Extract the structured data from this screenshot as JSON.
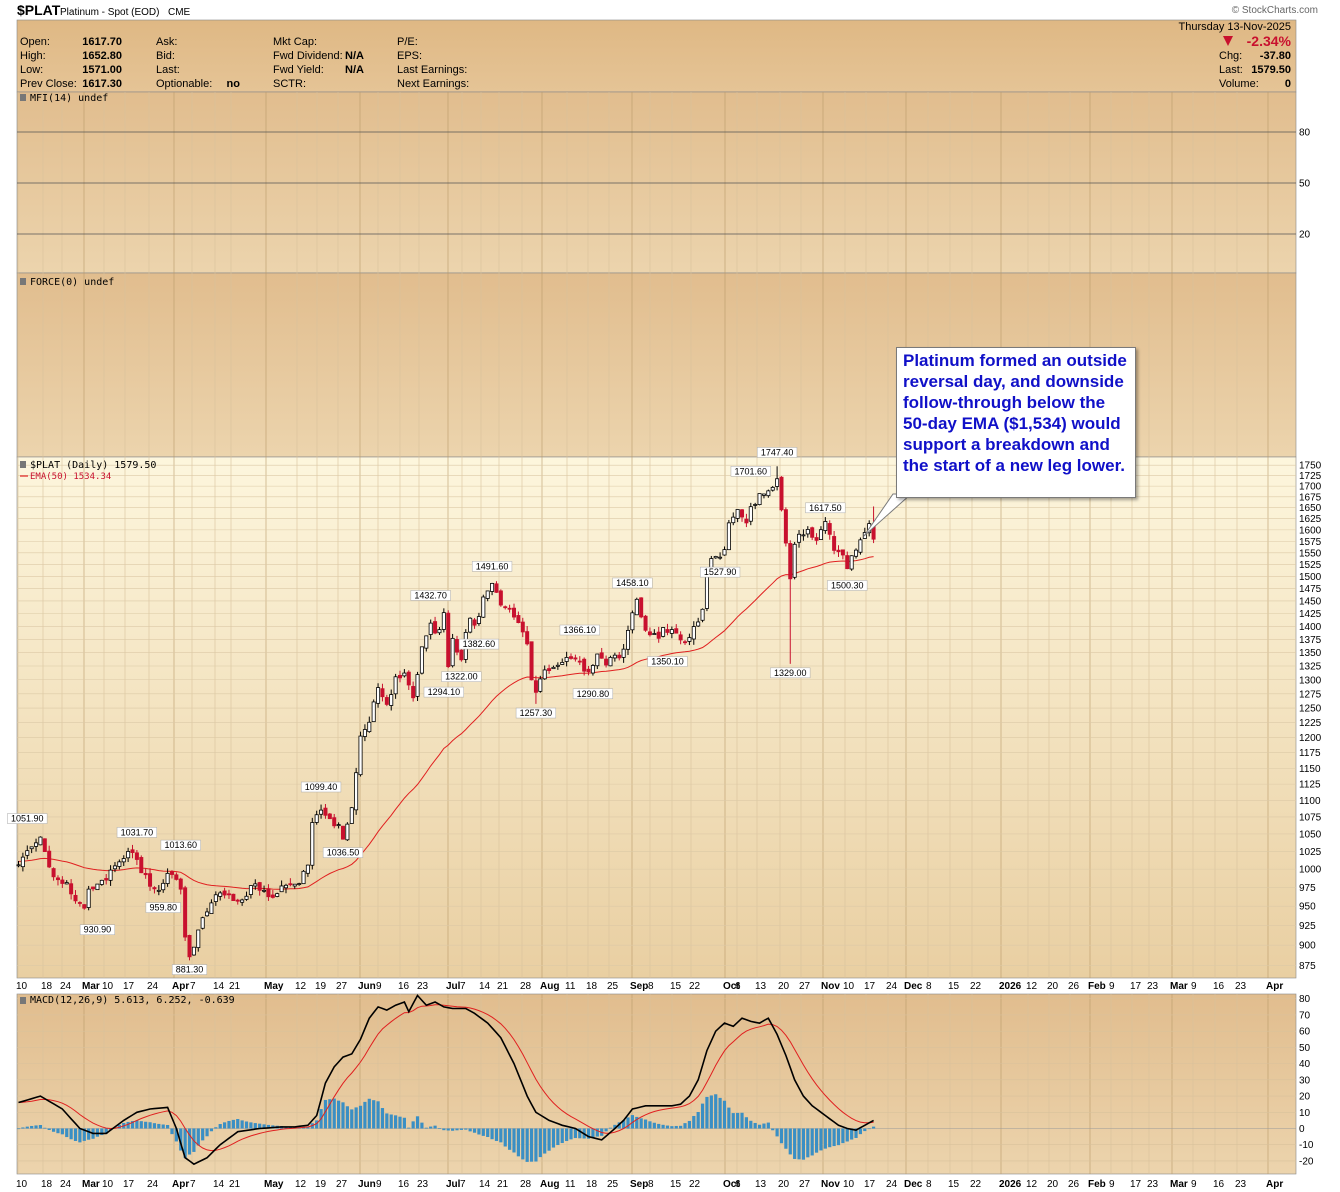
{
  "header": {
    "symbol": "$PLAT",
    "name": "Platinum - Spot (EOD)",
    "exchange": "CME",
    "date": "Thursday  13-Nov-2025",
    "source": "© StockCharts.com",
    "pct_change": "-2.34%",
    "fields": {
      "open_label": "Open:",
      "open": "1617.70",
      "high_label": "High:",
      "high": "1652.80",
      "low_label": "Low:",
      "low": "1571.00",
      "prev_label": "Prev Close:",
      "prev": "1617.30",
      "ask_label": "Ask:",
      "bid_label": "Bid:",
      "last_label": "Last:",
      "optionable_label": "Optionable:",
      "optionable": "no",
      "mktcap_label": "Mkt Cap:",
      "fwddiv_label": "Fwd Dividend:",
      "fwddiv": "N/A",
      "fwdyield_label": "Fwd Yield:",
      "fwdyield": "N/A",
      "sctr_label": "SCTR:",
      "pe_label": "P/E:",
      "eps_label": "EPS:",
      "lastearn_label": "Last Earnings:",
      "nextearn_label": "Next Earnings:",
      "chg_label": "Chg:",
      "chg": "-37.80",
      "lastprice_label": "Last:",
      "lastprice": "1579.50",
      "volume_label": "Volume:",
      "volume": "0"
    }
  },
  "panels": {
    "mfi_label": "MFI(14) undef",
    "force_label": "FORCE(0) undef",
    "price_label": "$PLAT (Daily) 1579.50",
    "ema_label": "EMA(50) 1534.34",
    "macd_label_main": "MACD(12,26,9) 5.613, 6.252, -0.639"
  },
  "colors": {
    "up": "#000000",
    "down": "#c8102e",
    "ema": "#e02020",
    "macd_line": "#000000",
    "signal_line": "#e02020",
    "histogram": "#3a8fc4",
    "annotation_text": "#1010c8"
  },
  "callout_text": "Platinum formed an outside reversal day, and downside follow-through below the 50-day EMA ($1,534) would support a breakdown and the start of a new leg lower.",
  "chart_data": {
    "type": "line",
    "title": "$PLAT (Daily) 1579.50",
    "ylim": [
      860,
      1770
    ],
    "y_scale": "log",
    "price_ticks": [
      875,
      900,
      925,
      950,
      975,
      1000,
      1025,
      1050,
      1075,
      1100,
      1125,
      1150,
      1175,
      1200,
      1225,
      1250,
      1275,
      1300,
      1325,
      1350,
      1375,
      1400,
      1425,
      1450,
      1475,
      1500,
      1525,
      1550,
      1575,
      1600,
      1625,
      1650,
      1675,
      1700,
      1725,
      1750
    ],
    "mfi_ticks": [
      80,
      50,
      20
    ],
    "macd_ticks": [
      80,
      70,
      60,
      50,
      40,
      30,
      20,
      10,
      0,
      -10,
      -20
    ],
    "x_labels": [
      {
        "t": "10",
        "b": false
      },
      {
        "t": "18",
        "b": false
      },
      {
        "t": "24",
        "b": false
      },
      {
        "t": "Mar",
        "b": true
      },
      {
        "t": "10",
        "b": false
      },
      {
        "t": "17",
        "b": false
      },
      {
        "t": "24",
        "b": false
      },
      {
        "t": "Apr",
        "b": true
      },
      {
        "t": "7",
        "b": false
      },
      {
        "t": "14",
        "b": false
      },
      {
        "t": "21",
        "b": false
      },
      {
        "t": "May",
        "b": true
      },
      {
        "t": "12",
        "b": false
      },
      {
        "t": "19",
        "b": false
      },
      {
        "t": "27",
        "b": false
      },
      {
        "t": "Jun",
        "b": true
      },
      {
        "t": "9",
        "b": false
      },
      {
        "t": "16",
        "b": false
      },
      {
        "t": "23",
        "b": false
      },
      {
        "t": "Jul",
        "b": true
      },
      {
        "t": "7",
        "b": false
      },
      {
        "t": "14",
        "b": false
      },
      {
        "t": "21",
        "b": false
      },
      {
        "t": "28",
        "b": false
      },
      {
        "t": "Aug",
        "b": true
      },
      {
        "t": "11",
        "b": false
      },
      {
        "t": "18",
        "b": false
      },
      {
        "t": "25",
        "b": false
      },
      {
        "t": "Sep",
        "b": true
      },
      {
        "t": "8",
        "b": false
      },
      {
        "t": "15",
        "b": false
      },
      {
        "t": "22",
        "b": false
      },
      {
        "t": "Oct",
        "b": true
      },
      {
        "t": "6",
        "b": false
      },
      {
        "t": "13",
        "b": false
      },
      {
        "t": "20",
        "b": false
      },
      {
        "t": "27",
        "b": false
      },
      {
        "t": "Nov",
        "b": true
      },
      {
        "t": "10",
        "b": false
      },
      {
        "t": "17",
        "b": false
      },
      {
        "t": "24",
        "b": false
      },
      {
        "t": "Dec",
        "b": true
      },
      {
        "t": "8",
        "b": false
      },
      {
        "t": "15",
        "b": false
      },
      {
        "t": "22",
        "b": false
      },
      {
        "t": "2026",
        "b": true
      },
      {
        "t": "12",
        "b": false
      },
      {
        "t": "20",
        "b": false
      },
      {
        "t": "26",
        "b": false
      },
      {
        "t": "Feb",
        "b": true
      },
      {
        "t": "9",
        "b": false
      },
      {
        "t": "17",
        "b": false
      },
      {
        "t": "23",
        "b": false
      },
      {
        "t": "Mar",
        "b": true
      },
      {
        "t": "9",
        "b": false
      },
      {
        "t": "16",
        "b": false
      },
      {
        "t": "23",
        "b": false
      },
      {
        "t": "Apr",
        "b": true
      }
    ],
    "price_anchors": [
      [
        0,
        1000
      ],
      [
        3,
        1035
      ],
      [
        5,
        1045
      ],
      [
        7,
        1000
      ],
      [
        9,
        985
      ],
      [
        11,
        980
      ],
      [
        13,
        960
      ],
      [
        15,
        945
      ],
      [
        16,
        975
      ],
      [
        19,
        985
      ],
      [
        22,
        1000
      ],
      [
        24,
        1020
      ],
      [
        26,
        1025
      ],
      [
        28,
        1000
      ],
      [
        30,
        975
      ],
      [
        32,
        975
      ],
      [
        34,
        990
      ],
      [
        35,
        995
      ],
      [
        37,
        975
      ],
      [
        38,
        915
      ],
      [
        39,
        885
      ],
      [
        41,
        915
      ],
      [
        43,
        945
      ],
      [
        45,
        965
      ],
      [
        48,
        970
      ],
      [
        50,
        955
      ],
      [
        52,
        965
      ],
      [
        54,
        980
      ],
      [
        56,
        970
      ],
      [
        58,
        960
      ],
      [
        60,
        975
      ],
      [
        62,
        980
      ],
      [
        64,
        985
      ],
      [
        66,
        1010
      ],
      [
        67,
        1065
      ],
      [
        68,
        1080
      ],
      [
        69,
        1085
      ],
      [
        71,
        1070
      ],
      [
        73,
        1065
      ],
      [
        74,
        1045
      ],
      [
        76,
        1090
      ],
      [
        78,
        1200
      ],
      [
        80,
        1230
      ],
      [
        82,
        1280
      ],
      [
        84,
        1250
      ],
      [
        86,
        1300
      ],
      [
        88,
        1320
      ],
      [
        90,
        1270
      ],
      [
        92,
        1360
      ],
      [
        94,
        1400
      ],
      [
        95,
        1380
      ],
      [
        97,
        1420
      ],
      [
        98,
        1330
      ],
      [
        99,
        1370
      ],
      [
        101,
        1340
      ],
      [
        103,
        1420
      ],
      [
        104,
        1395
      ],
      [
        106,
        1460
      ],
      [
        108,
        1490
      ],
      [
        110,
        1445
      ],
      [
        112,
        1440
      ],
      [
        114,
        1405
      ],
      [
        116,
        1360
      ],
      [
        117,
        1300
      ],
      [
        118,
        1270
      ],
      [
        120,
        1320
      ],
      [
        121,
        1310
      ],
      [
        123,
        1320
      ],
      [
        126,
        1340
      ],
      [
        128,
        1330
      ],
      [
        130,
        1310
      ],
      [
        132,
        1340
      ],
      [
        134,
        1330
      ],
      [
        136,
        1345
      ],
      [
        138,
        1350
      ],
      [
        140,
        1420
      ],
      [
        141,
        1450
      ],
      [
        143,
        1400
      ],
      [
        145,
        1380
      ],
      [
        147,
        1390
      ],
      [
        149,
        1395
      ],
      [
        151,
        1370
      ],
      [
        153,
        1380
      ],
      [
        155,
        1410
      ],
      [
        156,
        1440
      ],
      [
        157,
        1500
      ],
      [
        158,
        1535
      ],
      [
        160,
        1545
      ],
      [
        161,
        1560
      ],
      [
        162,
        1620
      ],
      [
        164,
        1640
      ],
      [
        166,
        1625
      ],
      [
        168,
        1660
      ],
      [
        170,
        1690
      ],
      [
        172,
        1700
      ],
      [
        173,
        1725
      ],
      [
        174,
        1645
      ],
      [
        175,
        1570
      ],
      [
        176,
        1500
      ],
      [
        177,
        1560
      ],
      [
        178,
        1590
      ],
      [
        180,
        1600
      ],
      [
        182,
        1580
      ],
      [
        184,
        1620
      ],
      [
        186,
        1560
      ],
      [
        188,
        1550
      ],
      [
        189,
        1525
      ],
      [
        191,
        1555
      ],
      [
        193,
        1590
      ],
      [
        194,
        1610
      ],
      [
        195,
        1580
      ]
    ],
    "macd_anchors": [
      [
        0,
        16
      ],
      [
        5,
        20
      ],
      [
        10,
        12
      ],
      [
        14,
        0
      ],
      [
        17,
        -3
      ],
      [
        20,
        -3
      ],
      [
        24,
        5
      ],
      [
        27,
        10
      ],
      [
        30,
        12
      ],
      [
        34,
        13
      ],
      [
        36,
        0
      ],
      [
        38,
        -18
      ],
      [
        40,
        -22
      ],
      [
        43,
        -18
      ],
      [
        46,
        -10
      ],
      [
        50,
        -2
      ],
      [
        55,
        0
      ],
      [
        60,
        1
      ],
      [
        63,
        1
      ],
      [
        66,
        2
      ],
      [
        68,
        8
      ],
      [
        70,
        28
      ],
      [
        72,
        38
      ],
      [
        74,
        44
      ],
      [
        76,
        46
      ],
      [
        78,
        55
      ],
      [
        80,
        68
      ],
      [
        82,
        75
      ],
      [
        84,
        73
      ],
      [
        86,
        76
      ],
      [
        88,
        78
      ],
      [
        89,
        72
      ],
      [
        91,
        82
      ],
      [
        93,
        76
      ],
      [
        95,
        78
      ],
      [
        97,
        75
      ],
      [
        99,
        74
      ],
      [
        102,
        74
      ],
      [
        104,
        71
      ],
      [
        107,
        65
      ],
      [
        110,
        56
      ],
      [
        113,
        40
      ],
      [
        116,
        20
      ],
      [
        118,
        10
      ],
      [
        121,
        5
      ],
      [
        124,
        2
      ],
      [
        127,
        0
      ],
      [
        130,
        -5
      ],
      [
        133,
        -7
      ],
      [
        136,
        0
      ],
      [
        138,
        5
      ],
      [
        140,
        12
      ],
      [
        143,
        14
      ],
      [
        146,
        14
      ],
      [
        149,
        14
      ],
      [
        151,
        15
      ],
      [
        153,
        20
      ],
      [
        155,
        30
      ],
      [
        157,
        48
      ],
      [
        159,
        60
      ],
      [
        161,
        65
      ],
      [
        163,
        63
      ],
      [
        165,
        68
      ],
      [
        167,
        66
      ],
      [
        169,
        65
      ],
      [
        171,
        68
      ],
      [
        173,
        58
      ],
      [
        175,
        45
      ],
      [
        177,
        30
      ],
      [
        179,
        20
      ],
      [
        181,
        14
      ],
      [
        183,
        10
      ],
      [
        185,
        6
      ],
      [
        187,
        2
      ],
      [
        189,
        0
      ],
      [
        191,
        -1
      ],
      [
        193,
        2
      ],
      [
        195,
        5
      ]
    ],
    "labels": [
      {
        "text": "1051.90",
        "i": 2,
        "price": 1052,
        "pos": "above"
      },
      {
        "text": "930.90",
        "i": 18,
        "price": 931,
        "pos": "below"
      },
      {
        "text": "1031.70",
        "i": 27,
        "price": 1032,
        "pos": "above"
      },
      {
        "text": "959.80",
        "i": 33,
        "price": 960,
        "pos": "below"
      },
      {
        "text": "1013.60",
        "i": 37,
        "price": 1014,
        "pos": "above"
      },
      {
        "text": "881.30",
        "i": 39,
        "price": 881,
        "pos": "below"
      },
      {
        "text": "1099.40",
        "i": 69,
        "price": 1099,
        "pos": "above"
      },
      {
        "text": "1036.50",
        "i": 74,
        "price": 1036,
        "pos": "below"
      },
      {
        "text": "1432.70",
        "i": 94,
        "price": 1433,
        "pos": "above"
      },
      {
        "text": "1294.10",
        "i": 97,
        "price": 1294,
        "pos": "below"
      },
      {
        "text": "1322.00",
        "i": 101,
        "price": 1322,
        "pos": "below"
      },
      {
        "text": "1382.60",
        "i": 105,
        "price": 1383,
        "pos": "below"
      },
      {
        "text": "1491.60",
        "i": 108,
        "price": 1492,
        "pos": "above"
      },
      {
        "text": "1257.30",
        "i": 118,
        "price": 1257,
        "pos": "below"
      },
      {
        "text": "1366.10",
        "i": 128,
        "price": 1366,
        "pos": "above"
      },
      {
        "text": "1290.80",
        "i": 131,
        "price": 1291,
        "pos": "below"
      },
      {
        "text": "1458.10",
        "i": 140,
        "price": 1458,
        "pos": "above"
      },
      {
        "text": "1350.10",
        "i": 148,
        "price": 1350,
        "pos": "below"
      },
      {
        "text": "1527.90",
        "i": 160,
        "price": 1528,
        "pos": "below"
      },
      {
        "text": "1701.60",
        "i": 167,
        "price": 1702,
        "pos": "above"
      },
      {
        "text": "1747.40",
        "i": 173,
        "price": 1747,
        "pos": "above"
      },
      {
        "text": "1329.00",
        "i": 176,
        "price": 1329,
        "pos": "below"
      },
      {
        "text": "1617.50",
        "i": 184,
        "price": 1618,
        "pos": "above"
      },
      {
        "text": "1500.30",
        "i": 189,
        "price": 1500,
        "pos": "below"
      }
    ]
  }
}
